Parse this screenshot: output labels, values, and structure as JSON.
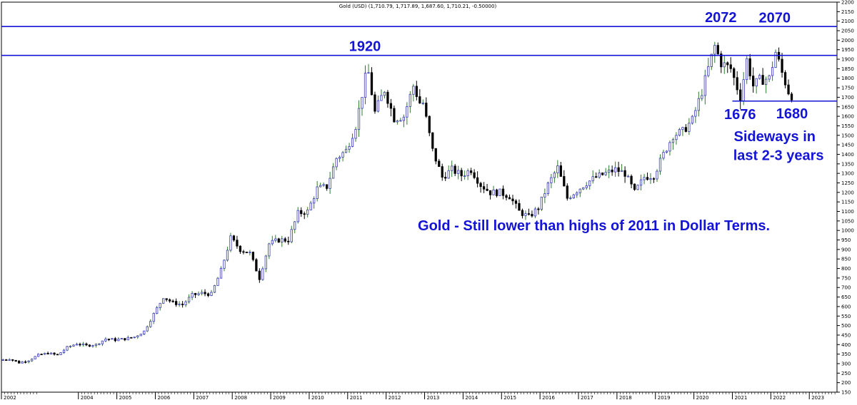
{
  "header": {
    "text": "Gold (USD) (1,710.79, 1,717.89, 1,687.60, 1,710.21, -0.50000)"
  },
  "chart_data": {
    "type": "candlestick",
    "title": "Gold (USD) (1,710.79, 1,717.89, 1,687.60, 1,710.21, -0.50000)",
    "xlabel": "",
    "ylabel": "",
    "xlim": [
      2002.0,
      2023.72
    ],
    "ylim": [
      150,
      2200
    ],
    "y_axis_position": "right",
    "grid": false,
    "y_ticks": [
      150,
      200,
      250,
      300,
      350,
      400,
      450,
      500,
      550,
      600,
      650,
      700,
      750,
      800,
      850,
      900,
      950,
      1000,
      1050,
      1100,
      1150,
      1200,
      1250,
      1300,
      1350,
      1400,
      1450,
      1500,
      1550,
      1600,
      1650,
      1700,
      1750,
      1800,
      1850,
      1900,
      1950,
      2000,
      2050,
      2100,
      2150,
      2200
    ],
    "x_tick_labels": [
      "2002",
      "2004",
      "2005",
      "2006",
      "2007",
      "2008",
      "2009",
      "2010",
      "2011",
      "2012",
      "2013",
      "2014",
      "2015",
      "2016",
      "2017",
      "2018",
      "2019",
      "2020",
      "2021",
      "2022",
      "2023"
    ],
    "x_tick_years": [
      2002,
      2004,
      2005,
      2006,
      2007,
      2008,
      2009,
      2010,
      2011,
      2012,
      2013,
      2014,
      2015,
      2016,
      2017,
      2018,
      2019,
      2020,
      2021,
      2022,
      2023
    ],
    "colors": {
      "up": "#2e7d32",
      "down": "#000000",
      "lines": "#1414d6",
      "text": "#1414d6"
    },
    "series": [
      {
        "key": "price",
        "interval": "monthly",
        "points": [
          [
            2002.0,
            318
          ],
          [
            2002.25,
            325
          ],
          [
            2002.5,
            305
          ],
          [
            2002.75,
            318
          ],
          [
            2003.0,
            345
          ],
          [
            2003.25,
            355
          ],
          [
            2003.5,
            345
          ],
          [
            2003.75,
            385
          ],
          [
            2004.0,
            405
          ],
          [
            2004.25,
            395
          ],
          [
            2004.5,
            400
          ],
          [
            2004.75,
            430
          ],
          [
            2005.0,
            425
          ],
          [
            2005.25,
            430
          ],
          [
            2005.5,
            440
          ],
          [
            2005.75,
            470
          ],
          [
            2006.0,
            560
          ],
          [
            2006.25,
            650
          ],
          [
            2006.5,
            620
          ],
          [
            2006.75,
            610
          ],
          [
            2007.0,
            660
          ],
          [
            2007.25,
            670
          ],
          [
            2007.5,
            665
          ],
          [
            2007.75,
            790
          ],
          [
            2008.0,
            960
          ],
          [
            2008.25,
            900
          ],
          [
            2008.5,
            880
          ],
          [
            2008.75,
            750
          ],
          [
            2009.0,
            930
          ],
          [
            2009.25,
            950
          ],
          [
            2009.5,
            950
          ],
          [
            2009.75,
            1090
          ],
          [
            2010.0,
            1100
          ],
          [
            2010.25,
            1220
          ],
          [
            2010.5,
            1230
          ],
          [
            2010.75,
            1380
          ],
          [
            2011.0,
            1420
          ],
          [
            2011.25,
            1550
          ],
          [
            2011.5,
            1800
          ],
          [
            2011.58,
            1830
          ],
          [
            2011.75,
            1620
          ],
          [
            2012.0,
            1740
          ],
          [
            2012.25,
            1590
          ],
          [
            2012.5,
            1600
          ],
          [
            2012.75,
            1760
          ],
          [
            2012.92,
            1670
          ],
          [
            2013.0,
            1670
          ],
          [
            2013.25,
            1420
          ],
          [
            2013.5,
            1280
          ],
          [
            2013.75,
            1320
          ],
          [
            2014.0,
            1290
          ],
          [
            2014.25,
            1320
          ],
          [
            2014.5,
            1240
          ],
          [
            2014.75,
            1200
          ],
          [
            2015.0,
            1200
          ],
          [
            2015.25,
            1180
          ],
          [
            2015.5,
            1100
          ],
          [
            2015.75,
            1070
          ],
          [
            2016.0,
            1120
          ],
          [
            2016.25,
            1240
          ],
          [
            2016.5,
            1330
          ],
          [
            2016.75,
            1170
          ],
          [
            2017.0,
            1210
          ],
          [
            2017.25,
            1250
          ],
          [
            2017.5,
            1280
          ],
          [
            2017.75,
            1300
          ],
          [
            2018.0,
            1320
          ],
          [
            2018.25,
            1300
          ],
          [
            2018.5,
            1200
          ],
          [
            2018.75,
            1280
          ],
          [
            2019.0,
            1290
          ],
          [
            2019.25,
            1400
          ],
          [
            2019.5,
            1500
          ],
          [
            2019.75,
            1520
          ],
          [
            2020.0,
            1580
          ],
          [
            2020.25,
            1730
          ],
          [
            2020.58,
            1970
          ],
          [
            2020.75,
            1880
          ],
          [
            2021.0,
            1850
          ],
          [
            2021.25,
            1700
          ],
          [
            2021.42,
            1900
          ],
          [
            2021.58,
            1760
          ],
          [
            2021.75,
            1790
          ],
          [
            2022.0,
            1800
          ],
          [
            2022.17,
            1940
          ],
          [
            2022.33,
            1830
          ],
          [
            2022.5,
            1730
          ],
          [
            2022.58,
            1710
          ]
        ]
      }
    ],
    "horizontal_lines": [
      {
        "y": 2072,
        "x_from": 2002.0
      },
      {
        "y": 1920,
        "x_from": 2002.0
      },
      {
        "y": 1680,
        "x_from": 2021.0
      }
    ],
    "annotations": [
      {
        "text": "1920",
        "x": 2011.45,
        "y": 1920
      },
      {
        "text": "2072",
        "x": 2020.7,
        "y": 2072
      },
      {
        "text": "2070",
        "x": 2022.1,
        "y": 2070
      },
      {
        "text": "1676",
        "x": 2021.2,
        "y": 1676
      },
      {
        "text": "1680",
        "x": 2022.55,
        "y": 1680
      },
      {
        "text": "Sideways in",
        "x": 2022.1,
        "y": 1470
      },
      {
        "text": "last 2-3 years",
        "x": 2022.2,
        "y": 1370
      },
      {
        "text": "Gold - Still lower than highs of 2011 in Dollar Terms.",
        "x": 2017.4,
        "y": 1000
      }
    ]
  }
}
